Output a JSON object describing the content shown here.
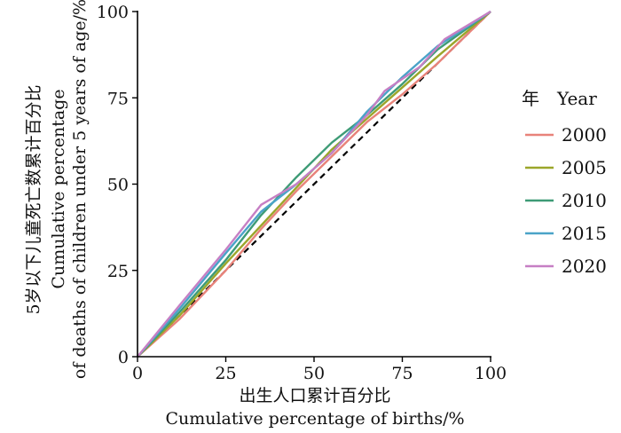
{
  "chart_data": {
    "type": "line",
    "xlabel_zh": "出生人口累计百分比",
    "xlabel_en": "Cumulative percentage of births/%",
    "ylabel_zh": "5岁以下儿童死亡数累计百分比",
    "ylabel_en_1": "Cumulative percentage",
    "ylabel_en_2": "of deaths of children under 5 years of age/%",
    "xlim": [
      0,
      100
    ],
    "ylim": [
      0,
      100
    ],
    "xticks": [
      0,
      25,
      50,
      75,
      100
    ],
    "yticks": [
      0,
      25,
      50,
      75,
      100
    ],
    "grid": false,
    "legend": {
      "position": "right",
      "title_zh": "年",
      "title_en": "Year"
    },
    "reference_line": {
      "style": "dashed",
      "color": "#000000",
      "points": [
        [
          0,
          0
        ],
        [
          100,
          100
        ]
      ]
    },
    "series": [
      {
        "name": "2000",
        "color": "#e8837a",
        "points": [
          [
            0,
            0
          ],
          [
            12,
            11
          ],
          [
            25,
            25
          ],
          [
            35,
            37
          ],
          [
            45,
            48
          ],
          [
            55,
            58
          ],
          [
            65,
            68
          ],
          [
            75,
            76
          ],
          [
            85,
            85
          ],
          [
            100,
            100
          ]
        ]
      },
      {
        "name": "2005",
        "color": "#9ba62a",
        "points": [
          [
            0,
            0
          ],
          [
            12,
            12
          ],
          [
            25,
            27
          ],
          [
            35,
            38
          ],
          [
            45,
            49
          ],
          [
            55,
            60
          ],
          [
            65,
            69
          ],
          [
            75,
            78
          ],
          [
            85,
            87
          ],
          [
            100,
            100
          ]
        ]
      },
      {
        "name": "2010",
        "color": "#3e9b76",
        "points": [
          [
            0,
            0
          ],
          [
            12,
            13
          ],
          [
            25,
            28
          ],
          [
            35,
            41
          ],
          [
            45,
            52
          ],
          [
            55,
            62
          ],
          [
            65,
            70
          ],
          [
            75,
            79
          ],
          [
            85,
            89
          ],
          [
            100,
            100
          ]
        ]
      },
      {
        "name": "2015",
        "color": "#4aa3c8",
        "points": [
          [
            0,
            0
          ],
          [
            12,
            14
          ],
          [
            25,
            30
          ],
          [
            35,
            42
          ],
          [
            45,
            50
          ],
          [
            55,
            59
          ],
          [
            65,
            71
          ],
          [
            75,
            81
          ],
          [
            85,
            90
          ],
          [
            100,
            100
          ]
        ]
      },
      {
        "name": "2020",
        "color": "#c67fc4",
        "points": [
          [
            0,
            0
          ],
          [
            12,
            15
          ],
          [
            25,
            31
          ],
          [
            35,
            44
          ],
          [
            45,
            50
          ],
          [
            55,
            59
          ],
          [
            65,
            70
          ],
          [
            70,
            77
          ],
          [
            80,
            84
          ],
          [
            87,
            92
          ],
          [
            100,
            100
          ]
        ]
      }
    ]
  }
}
